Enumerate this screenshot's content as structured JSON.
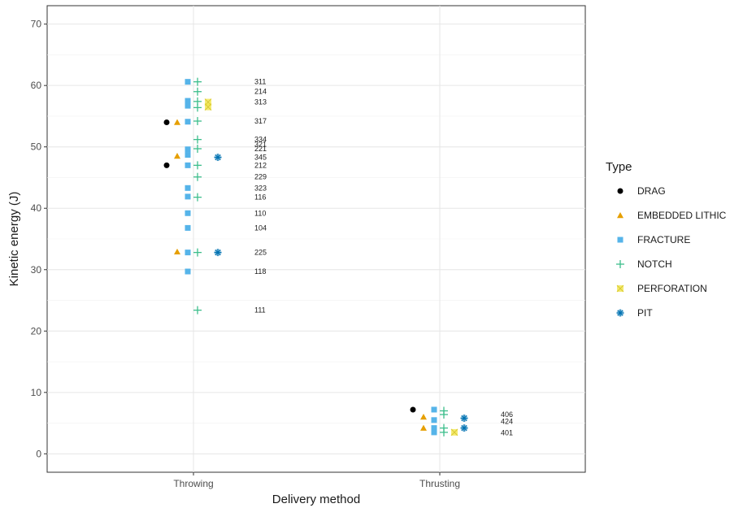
{
  "chart_data": {
    "type": "scatter",
    "title": "",
    "xlabel": "Delivery method",
    "ylabel": "Kinetic energy (J)",
    "categories": [
      "Throwing",
      "Thrusting"
    ],
    "ylim": [
      -3,
      73
    ],
    "yticks": [
      0,
      10,
      20,
      30,
      40,
      50,
      60,
      70
    ],
    "grid": true,
    "legend": {
      "title": "Type",
      "position": "right"
    },
    "series": [
      {
        "name": "DRAG",
        "marker": "circle",
        "color": "#000000",
        "points": [
          {
            "category": "Throwing",
            "y": 54.0
          },
          {
            "category": "Throwing",
            "y": 47.0
          },
          {
            "category": "Thrusting",
            "y": 7.2
          }
        ]
      },
      {
        "name": "EMBEDDED LITHIC",
        "marker": "triangle",
        "color": "#E69F00",
        "points": [
          {
            "category": "Throwing",
            "y": 54.0
          },
          {
            "category": "Throwing",
            "y": 48.5
          },
          {
            "category": "Throwing",
            "y": 32.9
          },
          {
            "category": "Thrusting",
            "y": 6.0
          },
          {
            "category": "Thrusting",
            "y": 4.2
          }
        ]
      },
      {
        "name": "FRACTURE",
        "marker": "square",
        "color": "#56B4E9",
        "points": [
          {
            "category": "Throwing",
            "y": 60.6
          },
          {
            "category": "Throwing",
            "y": 57.5
          },
          {
            "category": "Throwing",
            "y": 56.7
          },
          {
            "category": "Throwing",
            "y": 54.1
          },
          {
            "category": "Throwing",
            "y": 49.6
          },
          {
            "category": "Throwing",
            "y": 48.7
          },
          {
            "category": "Throwing",
            "y": 47.0
          },
          {
            "category": "Throwing",
            "y": 43.3
          },
          {
            "category": "Throwing",
            "y": 41.9
          },
          {
            "category": "Throwing",
            "y": 39.2
          },
          {
            "category": "Throwing",
            "y": 36.8
          },
          {
            "category": "Throwing",
            "y": 32.8
          },
          {
            "category": "Throwing",
            "y": 29.7
          },
          {
            "category": "Thrusting",
            "y": 7.2
          },
          {
            "category": "Thrusting",
            "y": 5.5
          },
          {
            "category": "Thrusting",
            "y": 4.2
          },
          {
            "category": "Thrusting",
            "y": 3.5
          }
        ]
      },
      {
        "name": "NOTCH",
        "marker": "plus",
        "color": "#3DBE8C",
        "points": [
          {
            "category": "Throwing",
            "y": 60.6
          },
          {
            "category": "Throwing",
            "y": 59.0
          },
          {
            "category": "Throwing",
            "y": 57.4
          },
          {
            "category": "Throwing",
            "y": 56.4
          },
          {
            "category": "Throwing",
            "y": 54.2
          },
          {
            "category": "Throwing",
            "y": 51.2
          },
          {
            "category": "Throwing",
            "y": 49.7
          },
          {
            "category": "Throwing",
            "y": 47.0
          },
          {
            "category": "Throwing",
            "y": 45.1
          },
          {
            "category": "Throwing",
            "y": 41.8
          },
          {
            "category": "Throwing",
            "y": 32.8
          },
          {
            "category": "Throwing",
            "y": 23.4
          },
          {
            "category": "Thrusting",
            "y": 7.0
          },
          {
            "category": "Thrusting",
            "y": 6.4
          },
          {
            "category": "Thrusting",
            "y": 4.2
          },
          {
            "category": "Thrusting",
            "y": 3.5
          }
        ]
      },
      {
        "name": "PERFORATION",
        "marker": "square-x",
        "color": "#F0E442",
        "points": [
          {
            "category": "Throwing",
            "y": 57.3
          },
          {
            "category": "Throwing",
            "y": 56.5
          },
          {
            "category": "Thrusting",
            "y": 3.5
          }
        ]
      },
      {
        "name": "PIT",
        "marker": "asterisk",
        "color": "#0072B2",
        "points": [
          {
            "category": "Throwing",
            "y": 48.3
          },
          {
            "category": "Throwing",
            "y": 32.8
          },
          {
            "category": "Thrusting",
            "y": 5.8
          },
          {
            "category": "Thrusting",
            "y": 4.2
          }
        ]
      }
    ],
    "point_labels": [
      {
        "category": "Throwing",
        "y": 60.6,
        "text": "311"
      },
      {
        "category": "Throwing",
        "y": 59.0,
        "text": "214"
      },
      {
        "category": "Throwing",
        "y": 57.3,
        "text": "313"
      },
      {
        "category": "Throwing",
        "y": 54.2,
        "text": "317"
      },
      {
        "category": "Throwing",
        "y": 51.2,
        "text": "334"
      },
      {
        "category": "Throwing",
        "y": 50.4,
        "text": "321"
      },
      {
        "category": "Throwing",
        "y": 49.7,
        "text": "221"
      },
      {
        "category": "Throwing",
        "y": 48.3,
        "text": "345"
      },
      {
        "category": "Throwing",
        "y": 47.0,
        "text": "212"
      },
      {
        "category": "Throwing",
        "y": 45.1,
        "text": "229"
      },
      {
        "category": "Throwing",
        "y": 43.3,
        "text": "323"
      },
      {
        "category": "Throwing",
        "y": 41.8,
        "text": "116"
      },
      {
        "category": "Throwing",
        "y": 39.2,
        "text": "110"
      },
      {
        "category": "Throwing",
        "y": 36.8,
        "text": "104"
      },
      {
        "category": "Throwing",
        "y": 32.8,
        "text": "225"
      },
      {
        "category": "Throwing",
        "y": 29.7,
        "text": "118"
      },
      {
        "category": "Throwing",
        "y": 23.4,
        "text": "111"
      },
      {
        "category": "Thrusting",
        "y": 6.4,
        "text": "406"
      },
      {
        "category": "Thrusting",
        "y": 5.3,
        "text": "424"
      },
      {
        "category": "Thrusting",
        "y": 3.4,
        "text": "401"
      }
    ]
  }
}
